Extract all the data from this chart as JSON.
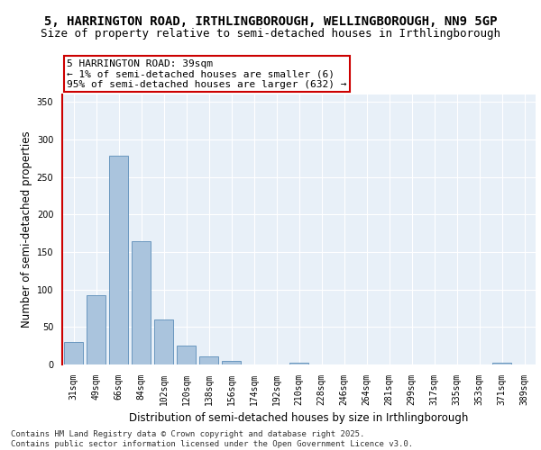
{
  "title_line1": "5, HARRINGTON ROAD, IRTHLINGBOROUGH, WELLINGBOROUGH, NN9 5GP",
  "title_line2": "Size of property relative to semi-detached houses in Irthlingborough",
  "xlabel": "Distribution of semi-detached houses by size in Irthlingborough",
  "ylabel": "Number of semi-detached properties",
  "categories": [
    "31sqm",
    "49sqm",
    "66sqm",
    "84sqm",
    "102sqm",
    "120sqm",
    "138sqm",
    "156sqm",
    "174sqm",
    "192sqm",
    "210sqm",
    "228sqm",
    "246sqm",
    "264sqm",
    "281sqm",
    "299sqm",
    "317sqm",
    "335sqm",
    "353sqm",
    "371sqm",
    "389sqm"
  ],
  "values": [
    30,
    93,
    278,
    165,
    60,
    25,
    11,
    5,
    0,
    0,
    3,
    0,
    0,
    0,
    0,
    0,
    0,
    0,
    0,
    2,
    0
  ],
  "bar_color": "#aac4dd",
  "bar_edge_color": "#5b8db8",
  "highlight_line_color": "#cc0000",
  "annotation_text": "5 HARRINGTON ROAD: 39sqm\n← 1% of semi-detached houses are smaller (6)\n95% of semi-detached houses are larger (632) →",
  "annotation_box_color": "#ffffff",
  "annotation_box_edge_color": "#cc0000",
  "ylim": [
    0,
    360
  ],
  "yticks": [
    0,
    50,
    100,
    150,
    200,
    250,
    300,
    350
  ],
  "background_color": "#e8f0f8",
  "grid_color": "#ffffff",
  "footer_line1": "Contains HM Land Registry data © Crown copyright and database right 2025.",
  "footer_line2": "Contains public sector information licensed under the Open Government Licence v3.0.",
  "title_fontsize": 10,
  "subtitle_fontsize": 9,
  "axis_label_fontsize": 8.5,
  "tick_fontsize": 7,
  "annotation_fontsize": 8,
  "footer_fontsize": 6.5
}
